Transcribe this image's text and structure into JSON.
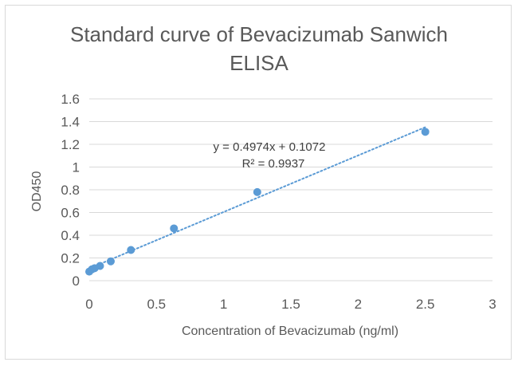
{
  "chart_data": {
    "type": "scatter",
    "title_line1": "Standard curve of Bevacizumab Sanwich",
    "title_line2": "ELISA",
    "xlabel": "Concentration of Bevacizumab (ng/ml)",
    "ylabel": "OD450",
    "xlim": [
      0,
      3
    ],
    "ylim": [
      0,
      1.6
    ],
    "x_ticks": [
      "0",
      "0.5",
      "1",
      "1.5",
      "2",
      "2.5",
      "3"
    ],
    "y_ticks": [
      "0",
      "0.2",
      "0.4",
      "0.6",
      "0.8",
      "1",
      "1.2",
      "1.4",
      "1.6"
    ],
    "grid": "horizontal",
    "points": {
      "x": [
        0,
        0.02,
        0.04,
        0.08,
        0.16,
        0.31,
        0.63,
        1.25,
        2.5
      ],
      "y": [
        0.08,
        0.1,
        0.11,
        0.13,
        0.17,
        0.27,
        0.46,
        0.78,
        1.31
      ]
    },
    "trendline": {
      "type": "linear",
      "slope": 0.4974,
      "intercept": 0.1072,
      "equation": "y = 0.4974x + 0.1072",
      "r_squared": "R² = 0.9937",
      "style": "dotted"
    },
    "colors": {
      "marker": "#5b9bd5",
      "trendline": "#5b9bd5",
      "grid": "#d9d9d9",
      "text": "#595959"
    }
  }
}
